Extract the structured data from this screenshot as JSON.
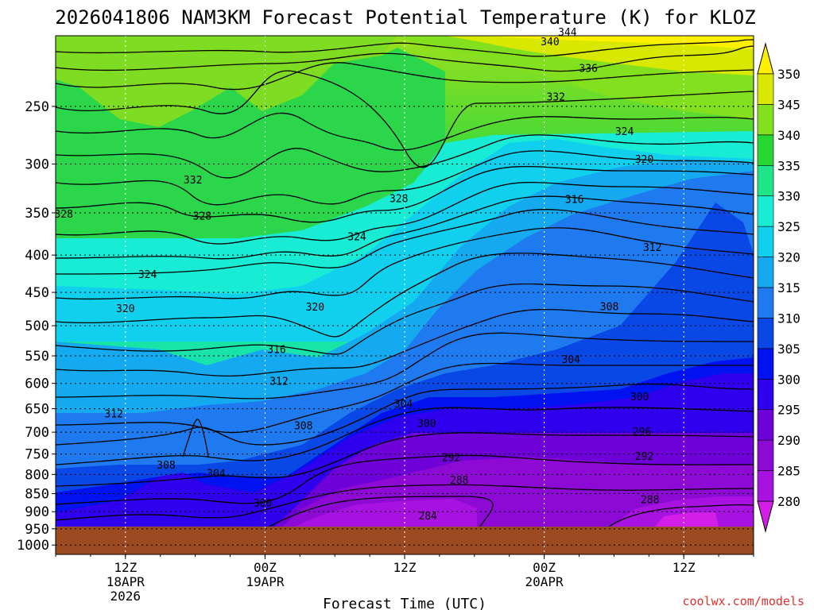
{
  "chart_data": {
    "type": "heatmap",
    "title": "2026041806 NAM3KM Forecast Potential Temperature (K) for KLOZ",
    "xlabel": "Forecast Time (UTC)",
    "ylabel": "",
    "credit": "coolwx.com/models",
    "x_ticks": [
      {
        "hours": 6,
        "label": "12Z",
        "label2": "18APR",
        "label3": "2026"
      },
      {
        "hours": 18,
        "label": "00Z",
        "label2": "19APR",
        "label3": ""
      },
      {
        "hours": 30,
        "label": "12Z",
        "label2": "",
        "label3": ""
      },
      {
        "hours": 42,
        "label": "00Z",
        "label2": "20APR",
        "label3": ""
      },
      {
        "hours": 54,
        "label": "12Z",
        "label2": "",
        "label3": ""
      }
    ],
    "xlim_hours": [
      0,
      60
    ],
    "y_ticks": [
      1000,
      950,
      900,
      850,
      800,
      750,
      700,
      650,
      600,
      550,
      500,
      450,
      400,
      350,
      300,
      250
    ],
    "y_tick_labels": [
      "1000",
      "950",
      "900",
      "850",
      "800",
      "750",
      "700",
      "650",
      "600",
      "550",
      "500",
      "450",
      "400",
      "350",
      "300",
      "250"
    ],
    "ylim_hpa": [
      1030,
      200
    ],
    "ground_level_hpa": 968,
    "colorbar": {
      "levels": [
        280,
        285,
        290,
        295,
        300,
        305,
        310,
        315,
        320,
        325,
        330,
        335,
        340,
        345,
        350
      ],
      "labels": [
        "280",
        "285",
        "290",
        "295",
        "300",
        "305",
        "310",
        "315",
        "320",
        "325",
        "330",
        "335",
        "340",
        "345",
        "350"
      ],
      "colors": [
        "#d21ee6",
        "#a812e0",
        "#8c0ad4",
        "#6e00d8",
        "#2e00ee",
        "#0012f0",
        "#0a48e6",
        "#1e7aee",
        "#15aaf0",
        "#10d0ee",
        "#18ecd4",
        "#1ee58a",
        "#28d832",
        "#82e01e",
        "#d8e800",
        "#fff000"
      ]
    },
    "contour_labels": [
      {
        "hours": 0.7,
        "hpa": 352,
        "value": "328"
      },
      {
        "hours": 11.8,
        "hpa": 316,
        "value": "332"
      },
      {
        "hours": 12.6,
        "hpa": 354,
        "value": "328"
      },
      {
        "hours": 7.9,
        "hpa": 426,
        "value": "324"
      },
      {
        "hours": 6.0,
        "hpa": 474,
        "value": "320"
      },
      {
        "hours": 5.0,
        "hpa": 661,
        "value": "312"
      },
      {
        "hours": 9.5,
        "hpa": 778,
        "value": "308"
      },
      {
        "hours": 13.8,
        "hpa": 798,
        "value": "304"
      },
      {
        "hours": 17.8,
        "hpa": 877,
        "value": "300"
      },
      {
        "hours": 19.2,
        "hpa": 597,
        "value": "312"
      },
      {
        "hours": 19.0,
        "hpa": 540,
        "value": "316"
      },
      {
        "hours": 22.3,
        "hpa": 472,
        "value": "320"
      },
      {
        "hours": 21.3,
        "hpa": 687,
        "value": "308"
      },
      {
        "hours": 25.9,
        "hpa": 378,
        "value": "324"
      },
      {
        "hours": 29.5,
        "hpa": 335,
        "value": "328"
      },
      {
        "hours": 29.9,
        "hpa": 641,
        "value": "304"
      },
      {
        "hours": 31.9,
        "hpa": 682,
        "value": "300"
      },
      {
        "hours": 34.0,
        "hpa": 759,
        "value": "292"
      },
      {
        "hours": 34.7,
        "hpa": 816,
        "value": "288"
      },
      {
        "hours": 32.0,
        "hpa": 913,
        "value": "284"
      },
      {
        "hours": 42.5,
        "hpa": 204,
        "value": "340"
      },
      {
        "hours": 44.0,
        "hpa": 198,
        "value": "344"
      },
      {
        "hours": 45.8,
        "hpa": 222,
        "value": "336"
      },
      {
        "hours": 43.0,
        "hpa": 243,
        "value": "332"
      },
      {
        "hours": 48.9,
        "hpa": 271,
        "value": "324"
      },
      {
        "hours": 50.6,
        "hpa": 296,
        "value": "320"
      },
      {
        "hours": 44.6,
        "hpa": 336,
        "value": "316"
      },
      {
        "hours": 51.3,
        "hpa": 391,
        "value": "312"
      },
      {
        "hours": 47.6,
        "hpa": 471,
        "value": "308"
      },
      {
        "hours": 44.3,
        "hpa": 557,
        "value": "304"
      },
      {
        "hours": 50.2,
        "hpa": 627,
        "value": "300"
      },
      {
        "hours": 50.4,
        "hpa": 700,
        "value": "296"
      },
      {
        "hours": 50.6,
        "hpa": 756,
        "value": "292"
      },
      {
        "hours": 51.1,
        "hpa": 867,
        "value": "288"
      }
    ]
  }
}
